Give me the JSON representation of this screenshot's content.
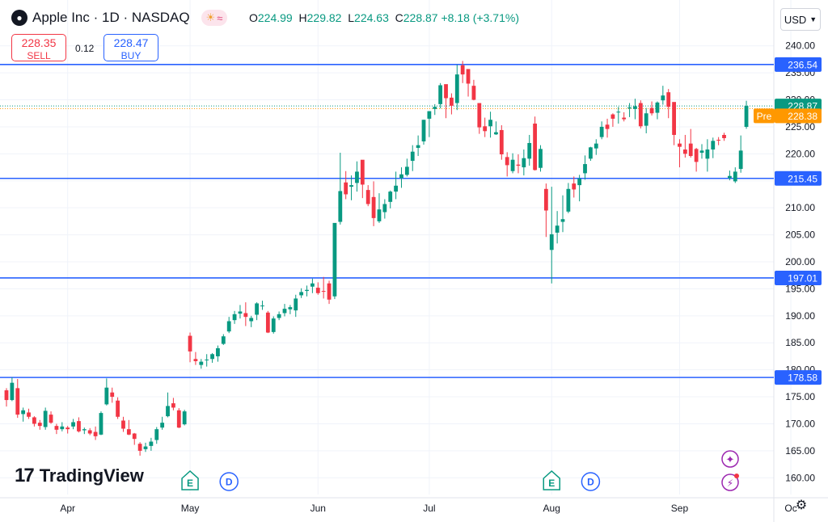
{
  "header": {
    "symbol_title": "Apple Inc · 1D · NASDAQ",
    "logo_icon": "apple-icon",
    "session_icons": [
      "sun-icon",
      "wave-icon"
    ],
    "ohlc": {
      "o_label": "O",
      "o": "224.99",
      "h_label": "H",
      "h": "229.82",
      "l_label": "L",
      "l": "224.63",
      "c_label": "C",
      "c": "228.87",
      "change": "+8.18 (+3.71%)"
    }
  },
  "trade": {
    "sell_price": "228.35",
    "sell_label": "SELL",
    "spread": "0.12",
    "buy_price": "228.47",
    "buy_label": "BUY"
  },
  "currency": {
    "label": "USD",
    "chevron_icon": "chevron-down-icon"
  },
  "brand": {
    "mark": "17",
    "name": "TradingView"
  },
  "settings_icon": "gear-icon",
  "colors": {
    "up": "#089981",
    "down": "#f23645",
    "hline": "#2962ff",
    "pre": "#ff9800",
    "grid": "#f0f3fa"
  },
  "chart_data": {
    "type": "candlestick",
    "title": "Apple Inc · 1D · NASDAQ",
    "ylim": [
      157.5,
      242.5
    ],
    "y_ticks": [
      160,
      165,
      170,
      175,
      180,
      185,
      190,
      195,
      200,
      205,
      210,
      215,
      220,
      225,
      230,
      235,
      240
    ],
    "x_ticks": [
      {
        "label": "Apr",
        "index": 11
      },
      {
        "label": "May",
        "index": 33
      },
      {
        "label": "Jun",
        "index": 56
      },
      {
        "label": "Jul",
        "index": 76
      },
      {
        "label": "Aug",
        "index": 98
      },
      {
        "label": "Sep",
        "index": 121
      },
      {
        "label": "Oc",
        "index": 141
      }
    ],
    "grid": true,
    "horizontal_levels": [
      {
        "value": 236.54,
        "label": "236.54"
      },
      {
        "value": 215.45,
        "label": "215.45"
      },
      {
        "value": 197.01,
        "label": "197.01"
      },
      {
        "value": 178.58,
        "label": "178.58"
      }
    ],
    "last_price": {
      "value": 228.87,
      "label": "228.87"
    },
    "pre_market": {
      "tag": "Pre",
      "value": 228.38,
      "label": "228.38"
    },
    "event_markers": [
      {
        "type": "E",
        "index": 33
      },
      {
        "type": "D",
        "index": 40
      },
      {
        "type": "E",
        "index": 98
      },
      {
        "type": "D",
        "index": 105
      }
    ],
    "ohlc": [
      [
        176.2,
        176.6,
        173.2,
        174.4
      ],
      [
        174.4,
        178.6,
        174.2,
        177.6
      ],
      [
        176.6,
        178.3,
        171.1,
        171.7
      ],
      [
        171.8,
        173.0,
        170.4,
        172.5
      ],
      [
        172.1,
        172.8,
        170.9,
        171.3
      ],
      [
        171.2,
        171.4,
        169.5,
        170.0
      ],
      [
        170.2,
        170.7,
        168.9,
        169.6
      ],
      [
        169.4,
        173.0,
        168.9,
        172.4
      ],
      [
        171.7,
        172.3,
        170.0,
        170.2
      ],
      [
        169.6,
        170.0,
        168.1,
        168.9
      ],
      [
        169.0,
        170.3,
        168.6,
        169.5
      ],
      [
        169.3,
        169.6,
        168.2,
        169.0
      ],
      [
        169.5,
        170.9,
        169.0,
        170.3
      ],
      [
        170.5,
        171.2,
        168.4,
        168.6
      ],
      [
        168.8,
        169.3,
        168.1,
        169.0
      ],
      [
        168.8,
        169.2,
        167.9,
        168.2
      ],
      [
        168.5,
        169.5,
        167.0,
        167.7
      ],
      [
        168.0,
        172.3,
        167.9,
        172.0
      ],
      [
        173.6,
        178.4,
        173.4,
        176.7
      ],
      [
        175.8,
        176.7,
        173.9,
        175.0
      ],
      [
        174.3,
        174.9,
        170.9,
        171.3
      ],
      [
        170.6,
        171.3,
        168.5,
        169.1
      ],
      [
        169.0,
        170.7,
        167.9,
        168.0
      ],
      [
        168.2,
        168.3,
        166.1,
        167.2
      ],
      [
        166.3,
        166.6,
        164.1,
        165.0
      ],
      [
        165.3,
        166.5,
        164.8,
        165.8
      ],
      [
        165.9,
        167.4,
        165.0,
        166.7
      ],
      [
        167.0,
        169.4,
        166.3,
        169.0
      ],
      [
        169.3,
        171.3,
        168.9,
        170.2
      ],
      [
        171.4,
        175.8,
        171.2,
        173.3
      ],
      [
        173.8,
        174.8,
        172.5,
        173.0
      ],
      [
        172.5,
        172.9,
        169.2,
        169.3
      ],
      [
        169.9,
        172.6,
        169.7,
        172.3
      ],
      [
        186.3,
        186.9,
        181.4,
        183.4
      ],
      [
        182.0,
        183.3,
        180.9,
        181.6
      ],
      [
        180.9,
        182.0,
        180.2,
        181.5
      ],
      [
        181.9,
        182.9,
        180.6,
        181.9
      ],
      [
        182.0,
        183.1,
        181.3,
        182.9
      ],
      [
        182.5,
        184.5,
        181.5,
        184.0
      ],
      [
        184.8,
        186.6,
        184.6,
        186.2
      ],
      [
        187.1,
        189.8,
        186.8,
        189.0
      ],
      [
        189.2,
        190.9,
        188.5,
        190.3
      ],
      [
        190.4,
        192.0,
        189.5,
        190.8
      ],
      [
        190.5,
        192.5,
        188.1,
        189.8
      ],
      [
        189.0,
        190.0,
        187.9,
        189.6
      ],
      [
        190.2,
        192.5,
        189.2,
        192.3
      ],
      [
        191.8,
        192.8,
        191.1,
        191.9
      ],
      [
        190.6,
        190.9,
        186.8,
        186.9
      ],
      [
        187.0,
        189.9,
        186.7,
        189.5
      ],
      [
        189.6,
        190.8,
        189.2,
        190.3
      ],
      [
        190.5,
        192.2,
        189.9,
        191.3
      ],
      [
        191.2,
        192.0,
        190.3,
        191.6
      ],
      [
        191.0,
        193.9,
        189.8,
        193.2
      ],
      [
        193.8,
        195.1,
        193.3,
        194.4
      ],
      [
        194.6,
        195.6,
        193.6,
        194.8
      ],
      [
        195.4,
        196.9,
        194.2,
        196.0
      ],
      [
        195.2,
        196.2,
        193.9,
        194.2
      ],
      [
        194.6,
        197.2,
        193.2,
        194.5
      ],
      [
        196.0,
        196.5,
        192.2,
        193.0
      ],
      [
        193.6,
        206.9,
        193.1,
        207.2
      ],
      [
        207.4,
        220.2,
        206.9,
        213.1
      ],
      [
        214.7,
        216.8,
        211.6,
        212.5
      ],
      [
        213.9,
        216.0,
        211.4,
        214.2
      ],
      [
        214.6,
        218.6,
        213.0,
        216.7
      ],
      [
        218.9,
        218.8,
        211.8,
        214.3
      ],
      [
        213.3,
        214.2,
        210.3,
        210.7
      ],
      [
        212.0,
        214.9,
        206.6,
        208.1
      ],
      [
        207.5,
        212.7,
        207.2,
        209.7
      ],
      [
        209.2,
        211.6,
        208.0,
        210.7
      ],
      [
        211.1,
        213.2,
        209.9,
        213.0
      ],
      [
        213.0,
        216.7,
        211.6,
        214.1
      ],
      [
        215.5,
        217.5,
        213.7,
        216.2
      ],
      [
        216.1,
        219.1,
        215.8,
        217.6
      ],
      [
        218.7,
        221.6,
        216.8,
        220.4
      ],
      [
        221.1,
        223.4,
        219.6,
        221.6
      ],
      [
        222.3,
        226.3,
        221.7,
        226.3
      ],
      [
        226.5,
        227.9,
        223.1,
        227.9
      ],
      [
        228.3,
        229.2,
        227.2,
        228.7
      ],
      [
        229.2,
        233.1,
        228.4,
        232.7
      ],
      [
        232.9,
        232.5,
        226.6,
        230.3
      ],
      [
        230.4,
        231.2,
        227.3,
        228.9
      ],
      [
        229.4,
        236.5,
        228.1,
        234.7
      ],
      [
        236.4,
        237.2,
        233.1,
        234.7
      ],
      [
        235.7,
        235.3,
        230.6,
        233.0
      ],
      [
        232.6,
        233.7,
        229.9,
        230.0
      ],
      [
        229.4,
        229.3,
        223.7,
        224.9
      ],
      [
        225.1,
        226.7,
        223.1,
        224.2
      ],
      [
        225.1,
        227.8,
        223.0,
        226.3
      ],
      [
        223.6,
        226.0,
        223.5,
        224.0
      ],
      [
        224.4,
        225.3,
        218.9,
        219.9
      ],
      [
        219.4,
        220.3,
        215.8,
        217.9
      ],
      [
        216.8,
        220.1,
        216.4,
        218.9
      ],
      [
        218.0,
        219.9,
        216.4,
        217.8
      ],
      [
        217.5,
        220.8,
        216.0,
        219.2
      ],
      [
        219.1,
        223.5,
        217.8,
        222.0
      ],
      [
        225.6,
        226.9,
        216.9,
        217.0
      ],
      [
        217.4,
        221.6,
        216.7,
        220.9
      ],
      [
        213.5,
        214.5,
        204.6,
        209.5
      ],
      [
        202.2,
        213.9,
        196.0,
        205.1
      ],
      [
        205.4,
        209.4,
        203.4,
        206.7
      ],
      [
        207.4,
        212.3,
        205.5,
        207.9
      ],
      [
        209.3,
        214.6,
        209.0,
        213.5
      ],
      [
        214.5,
        215.8,
        211.9,
        213.4
      ],
      [
        214.2,
        216.1,
        211.2,
        215.4
      ],
      [
        216.4,
        219.7,
        215.2,
        218.1
      ],
      [
        219.1,
        221.3,
        218.7,
        221.2
      ],
      [
        221.0,
        222.7,
        219.8,
        221.9
      ],
      [
        223.1,
        226.0,
        222.7,
        225.0
      ],
      [
        225.4,
        226.5,
        223.0,
        224.6
      ],
      [
        227.3,
        227.5,
        225.0,
        226.5
      ],
      [
        227.8,
        228.7,
        225.6,
        227.8
      ],
      [
        226.7,
        227.7,
        226.0,
        226.4
      ],
      [
        228.4,
        229.4,
        226.8,
        228.6
      ],
      [
        228.3,
        230.2,
        226.4,
        228.8
      ],
      [
        229.4,
        229.9,
        224.7,
        225.1
      ],
      [
        225.2,
        228.5,
        223.8,
        227.5
      ],
      [
        228.5,
        229.7,
        227.1,
        227.5
      ],
      [
        227.6,
        229.7,
        226.4,
        229.5
      ],
      [
        229.9,
        232.6,
        229.1,
        230.8
      ],
      [
        231.4,
        232.0,
        226.6,
        228.7
      ],
      [
        229.6,
        229.1,
        221.6,
        223.5
      ],
      [
        221.9,
        222.7,
        217.5,
        221.3
      ],
      [
        220.8,
        223.5,
        219.3,
        220.0
      ],
      [
        221.9,
        224.6,
        219.3,
        219.6
      ],
      [
        220.9,
        221.1,
        216.7,
        218.5
      ],
      [
        220.2,
        221.8,
        219.1,
        220.6
      ],
      [
        219.1,
        222.7,
        216.7,
        220.8
      ],
      [
        220.8,
        223.0,
        219.2,
        222.4
      ],
      [
        222.6,
        223.1,
        221.6,
        222.5
      ],
      [
        223.5,
        223.9,
        222.4,
        222.9
      ],
      [
        215.5,
        216.9,
        215.1,
        215.9
      ],
      [
        214.9,
        217.5,
        214.6,
        216.7
      ],
      [
        217.2,
        223.4,
        216.5,
        220.6
      ],
      [
        224.99,
        229.82,
        224.63,
        228.87
      ]
    ]
  }
}
